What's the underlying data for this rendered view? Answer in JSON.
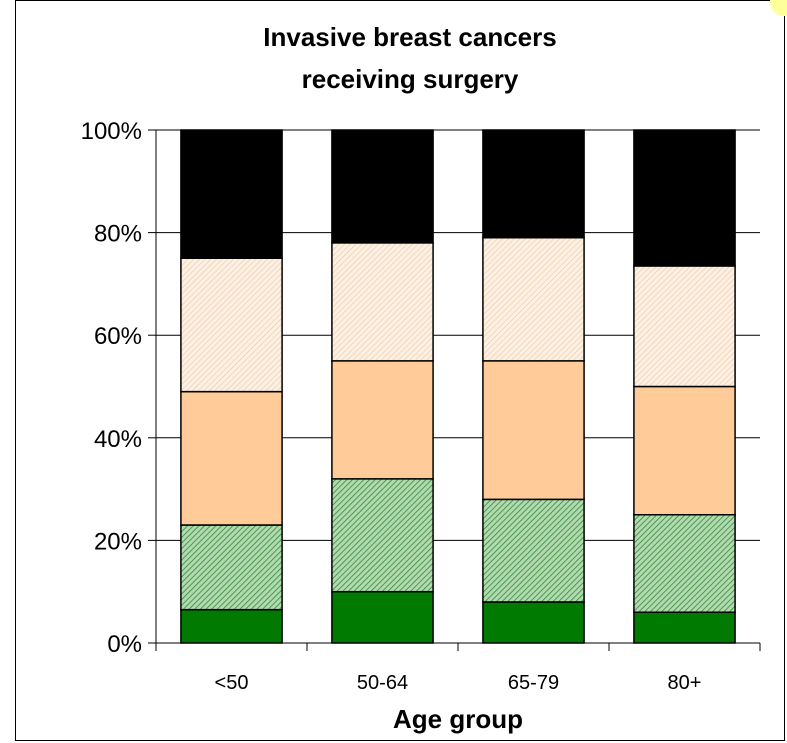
{
  "chart_data": {
    "type": "bar",
    "stacked": true,
    "title": [
      "Invasive breast cancers",
      "receiving surgery"
    ],
    "xlabel": "Age group",
    "ylabel": "",
    "ylim": [
      0,
      100
    ],
    "yticks": [
      "0%",
      "20%",
      "40%",
      "60%",
      "80%",
      "100%"
    ],
    "categories": [
      "<50",
      "50-64",
      "65-79",
      "80+"
    ],
    "grid": true,
    "series": [
      {
        "values": [
          6.5,
          10,
          8,
          6
        ],
        "color": "#007a00",
        "pattern": "solid"
      },
      {
        "values": [
          16.5,
          22,
          20,
          19
        ],
        "color": "#7fbf7f",
        "pattern": "hatch"
      },
      {
        "values": [
          26,
          23,
          27,
          25
        ],
        "color": "#ffcc99",
        "pattern": "solid"
      },
      {
        "values": [
          26,
          23,
          24,
          23.5
        ],
        "color": "#fae3cc",
        "pattern": "hatch"
      },
      {
        "values": [
          25,
          22,
          21,
          26.5
        ],
        "color": "#000000",
        "pattern": "solid"
      }
    ]
  }
}
